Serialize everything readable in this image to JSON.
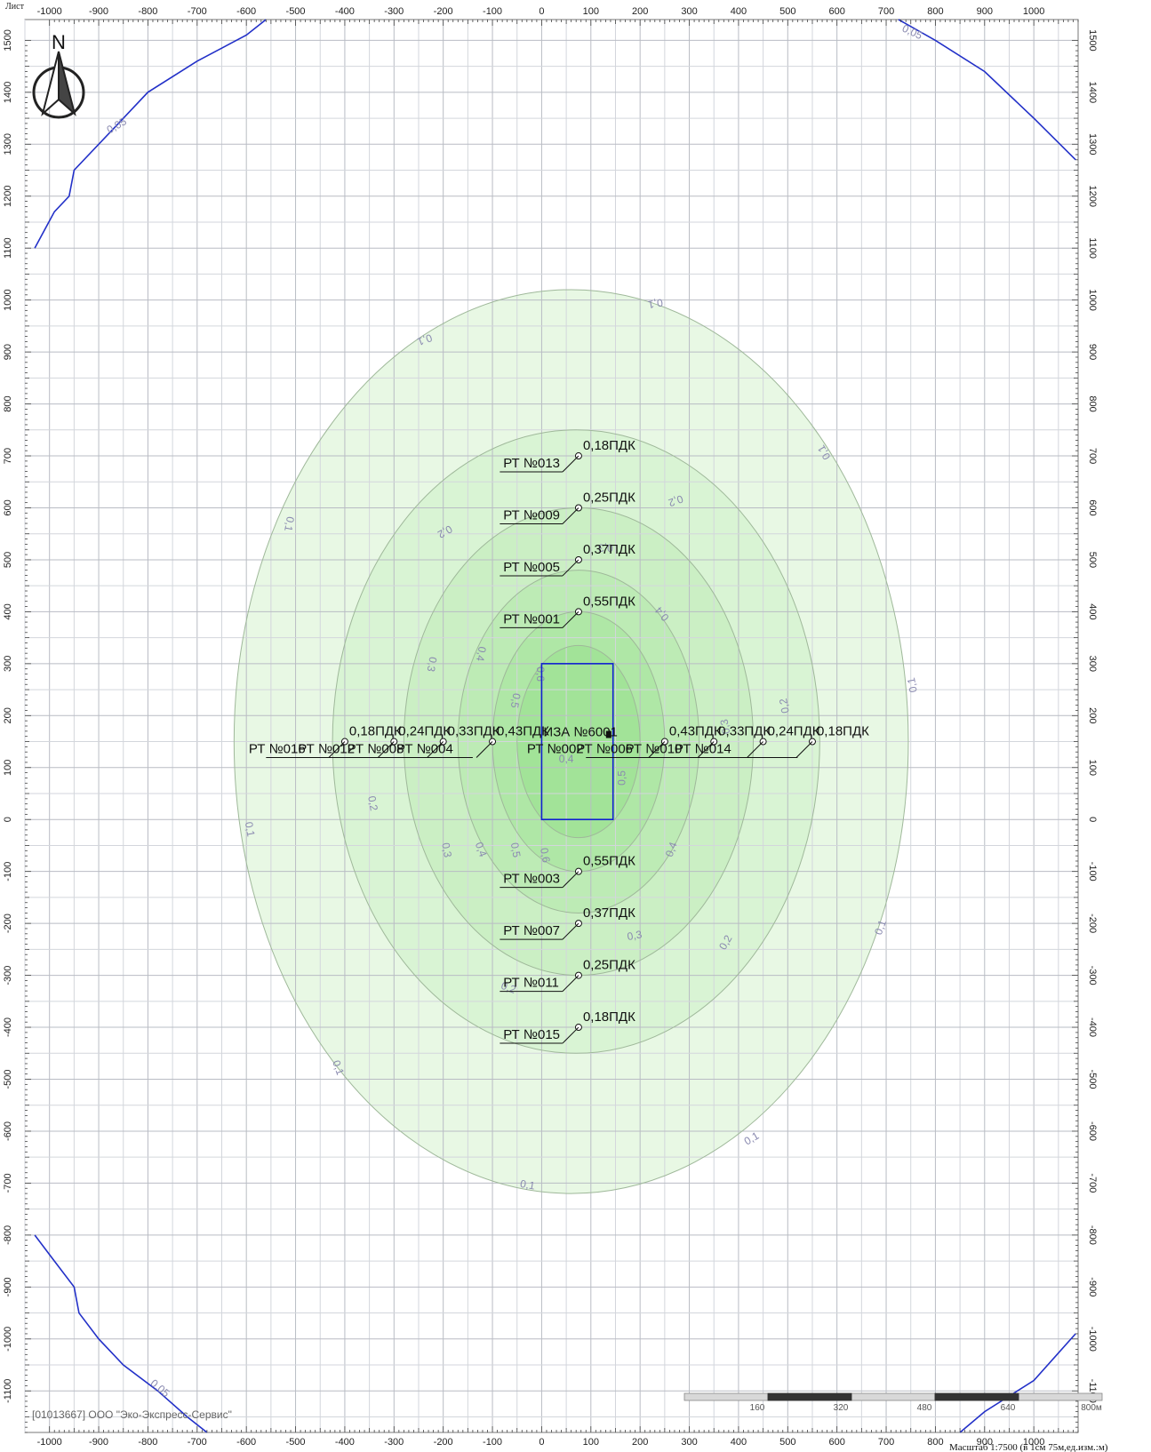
{
  "header": {
    "page_label": "Лист"
  },
  "north": {
    "label": "N"
  },
  "axes": {
    "x_ticks": [
      -1000,
      -900,
      -800,
      -700,
      -600,
      -500,
      -400,
      -300,
      -200,
      -100,
      0,
      100,
      200,
      300,
      400,
      500,
      600,
      700,
      800,
      900,
      1000
    ],
    "y_ticks": [
      1500,
      1400,
      1300,
      1200,
      1100,
      1000,
      900,
      800,
      700,
      600,
      500,
      400,
      300,
      200,
      100,
      0,
      -100,
      -200,
      -300,
      -400,
      -500,
      -600,
      -700,
      -800,
      -900,
      -1000,
      -1100
    ],
    "x_range": [
      -1050,
      1090
    ],
    "y_range": [
      -1180,
      1540
    ]
  },
  "source": {
    "label": "ИЗА №6001",
    "x_range": [
      0,
      145
    ],
    "y_range": [
      0,
      300
    ]
  },
  "isolines": [
    {
      "value": 0.1,
      "rx": 685,
      "ry": 870,
      "cx": 60,
      "cy": 150,
      "color": "#e8f8e4"
    },
    {
      "value": 0.2,
      "rx": 495,
      "ry": 600,
      "cx": 70,
      "cy": 150,
      "color": "#d9f4d4"
    },
    {
      "value": 0.3,
      "rx": 355,
      "ry": 450,
      "cx": 75,
      "cy": 150,
      "color": "#cbefc4"
    },
    {
      "value": 0.4,
      "rx": 245,
      "ry": 330,
      "cx": 75,
      "cy": 150,
      "color": "#bdebb5"
    },
    {
      "value": 0.5,
      "rx": 175,
      "ry": 250,
      "cx": 75,
      "cy": 150,
      "color": "#afe7a6"
    },
    {
      "value": 0.6,
      "rx": 125,
      "ry": 185,
      "cx": 75,
      "cy": 150,
      "color": "#a2e398"
    }
  ],
  "iso_labels": [
    {
      "text": "0,1",
      "x": 230,
      "y": 1000,
      "rot": 170
    },
    {
      "text": "0,1",
      "x": -240,
      "y": 930,
      "rot": 160
    },
    {
      "text": "0,1",
      "x": 580,
      "y": 710,
      "rot": 240
    },
    {
      "text": "0,1",
      "x": -520,
      "y": 570,
      "rot": 100
    },
    {
      "text": "0,1",
      "x": 760,
      "y": 260,
      "rot": 260
    },
    {
      "text": "0,1",
      "x": -600,
      "y": -20,
      "rot": 80
    },
    {
      "text": "0,1",
      "x": 695,
      "y": -210,
      "rot": 290
    },
    {
      "text": "0,1",
      "x": -420,
      "y": -480,
      "rot": 70
    },
    {
      "text": "0,1",
      "x": 430,
      "y": -620,
      "rot": 330
    },
    {
      "text": "0,1",
      "x": -30,
      "y": -710,
      "rot": 10
    },
    {
      "text": "0,2",
      "x": 270,
      "y": 620,
      "rot": 160
    },
    {
      "text": "0,2",
      "x": -200,
      "y": 560,
      "rot": 150
    },
    {
      "text": "0,2",
      "x": 500,
      "y": 220,
      "rot": 260
    },
    {
      "text": "0,2",
      "x": -350,
      "y": 30,
      "rot": 80
    },
    {
      "text": "0,2",
      "x": 380,
      "y": -240,
      "rot": 300
    },
    {
      "text": "0,2",
      "x": -70,
      "y": -330,
      "rot": 20
    },
    {
      "text": "0,3",
      "x": 130,
      "y": 530,
      "rot": 180
    },
    {
      "text": "0,3",
      "x": -230,
      "y": 300,
      "rot": 100
    },
    {
      "text": "0,3",
      "x": 380,
      "y": 180,
      "rot": 260
    },
    {
      "text": "0,3",
      "x": -200,
      "y": -60,
      "rot": 80
    },
    {
      "text": "0,3",
      "x": 190,
      "y": -230,
      "rot": 350
    },
    {
      "text": "0,4",
      "x": 250,
      "y": 400,
      "rot": 230
    },
    {
      "text": "0,4",
      "x": -130,
      "y": 320,
      "rot": 100
    },
    {
      "text": "0,4",
      "x": -130,
      "y": -60,
      "rot": 70
    },
    {
      "text": "0,4",
      "x": 270,
      "y": -60,
      "rot": 290
    },
    {
      "text": "0,4",
      "x": 50,
      "y": 110,
      "rot": 0
    },
    {
      "text": "0,5",
      "x": -60,
      "y": 230,
      "rot": 100
    },
    {
      "text": "0,5",
      "x": -60,
      "y": -60,
      "rot": 80
    },
    {
      "text": "0,5",
      "x": 170,
      "y": 80,
      "rot": 270
    },
    {
      "text": "0,6",
      "x": -10,
      "y": 280,
      "rot": 90
    },
    {
      "text": "0,6",
      "x": 0,
      "y": -70,
      "rot": 80
    },
    {
      "text": "0,05",
      "x": -860,
      "y": 1330,
      "rot": 330
    },
    {
      "text": "0,05",
      "x": 750,
      "y": 1510,
      "rot": 25
    },
    {
      "text": "0,05",
      "x": -780,
      "y": -1100,
      "rot": 40
    }
  ],
  "contours_005": [
    [
      [
        -1030,
        1100
      ],
      [
        -990,
        1170
      ],
      [
        -960,
        1200
      ],
      [
        -950,
        1250
      ],
      [
        -870,
        1330
      ],
      [
        -800,
        1400
      ],
      [
        -700,
        1460
      ],
      [
        -600,
        1510
      ],
      [
        -560,
        1540
      ]
    ],
    [
      [
        725,
        1540
      ],
      [
        800,
        1500
      ],
      [
        900,
        1440
      ],
      [
        1000,
        1350
      ],
      [
        1085,
        1270
      ]
    ],
    [
      [
        -1030,
        -800
      ],
      [
        -990,
        -850
      ],
      [
        -950,
        -900
      ],
      [
        -940,
        -950
      ],
      [
        -900,
        -1000
      ],
      [
        -850,
        -1050
      ],
      [
        -780,
        -1100
      ],
      [
        -720,
        -1150
      ],
      [
        -680,
        -1180
      ]
    ],
    [
      [
        850,
        -1180
      ],
      [
        900,
        -1140
      ],
      [
        1000,
        -1080
      ],
      [
        1085,
        -990
      ]
    ]
  ],
  "points": [
    {
      "id": "РТ №013",
      "value": "0,18ПДК",
      "x": 75,
      "y": 700
    },
    {
      "id": "РТ №009",
      "value": "0,25ПДК",
      "x": 75,
      "y": 600
    },
    {
      "id": "РТ №005",
      "value": "0,37ПДК",
      "x": 75,
      "y": 500
    },
    {
      "id": "РТ №001",
      "value": "0,55ПДК",
      "x": 75,
      "y": 400
    },
    {
      "id": "РТ №003",
      "value": "0,55ПДК",
      "x": 75,
      "y": -100
    },
    {
      "id": "РТ №007",
      "value": "0,37ПДК",
      "x": 75,
      "y": -200
    },
    {
      "id": "РТ №011",
      "value": "0,25ПДК",
      "x": 75,
      "y": -300
    },
    {
      "id": "РТ №015",
      "value": "0,18ПДК",
      "x": 75,
      "y": -400
    }
  ],
  "left_row": {
    "ids": [
      "РТ №016",
      "РТ №012",
      "РТ №008",
      "РТ №004"
    ],
    "values": [
      "0,18ПДК",
      "0,24ПДК",
      "0,33ПДК",
      "0,43ПДК"
    ],
    "xs": [
      -400,
      -300,
      -200,
      -100
    ],
    "y": 150
  },
  "right_row": {
    "ids": [
      "РТ №002",
      "РТ №006",
      "РТ №010",
      "РТ №014"
    ],
    "values": [
      "0,43ПДК",
      "0,33ПДК",
      "0,24ПДК",
      "0,18ПДК"
    ],
    "xs": [
      250,
      350,
      450,
      550
    ],
    "y": 150
  },
  "footer": {
    "org": "[01013667] ООО \"Эко-Экспресс-Сервис\"",
    "scale_labels": [
      "160",
      "320",
      "480",
      "640",
      "800м"
    ],
    "scale_note": "Масштаб 1:7500 (в 1см 75м,ед.изм.:м)"
  }
}
